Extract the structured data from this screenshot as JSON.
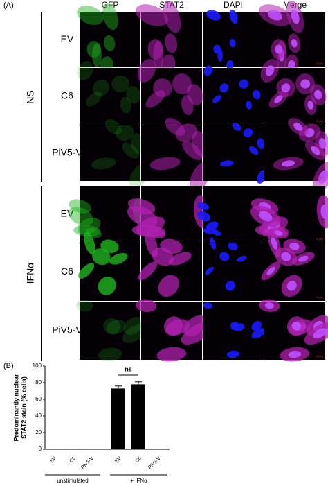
{
  "panel_a": {
    "label": "(A)",
    "columns": [
      "GFP",
      "STAT2",
      "DAPI",
      "Merge"
    ],
    "groups": [
      {
        "label": "NS",
        "rows": [
          "EV",
          "C6",
          "PiV5-V"
        ]
      },
      {
        "label": "IFNα",
        "rows": [
          "EV",
          "C6",
          "PiV5-V"
        ]
      }
    ],
    "scale_bar": "10 μm"
  },
  "panel_b_label": "(B)",
  "chart_data": {
    "type": "bar",
    "y_label": [
      "Predominantly nuclear",
      "STAT2 stain (% cells)"
    ],
    "categories": [
      "EV",
      "C6",
      "PiV5-V",
      "EV",
      "C6",
      "PiV5-V"
    ],
    "values": [
      0,
      0.5,
      0.3,
      73,
      78,
      0
    ],
    "errors": [
      0,
      0,
      0,
      3,
      3,
      0
    ],
    "color": "#000000",
    "ylim": [
      0,
      100
    ],
    "yticks": [
      0,
      20,
      40,
      60,
      80,
      100
    ],
    "grid": false,
    "groups": [
      {
        "label": "unstimulated",
        "categories": [
          0,
          2
        ]
      },
      {
        "label": "+ IFNα",
        "categories": [
          3,
          5
        ]
      }
    ],
    "annotation": {
      "text": "ns",
      "between": [
        3,
        4
      ]
    }
  }
}
